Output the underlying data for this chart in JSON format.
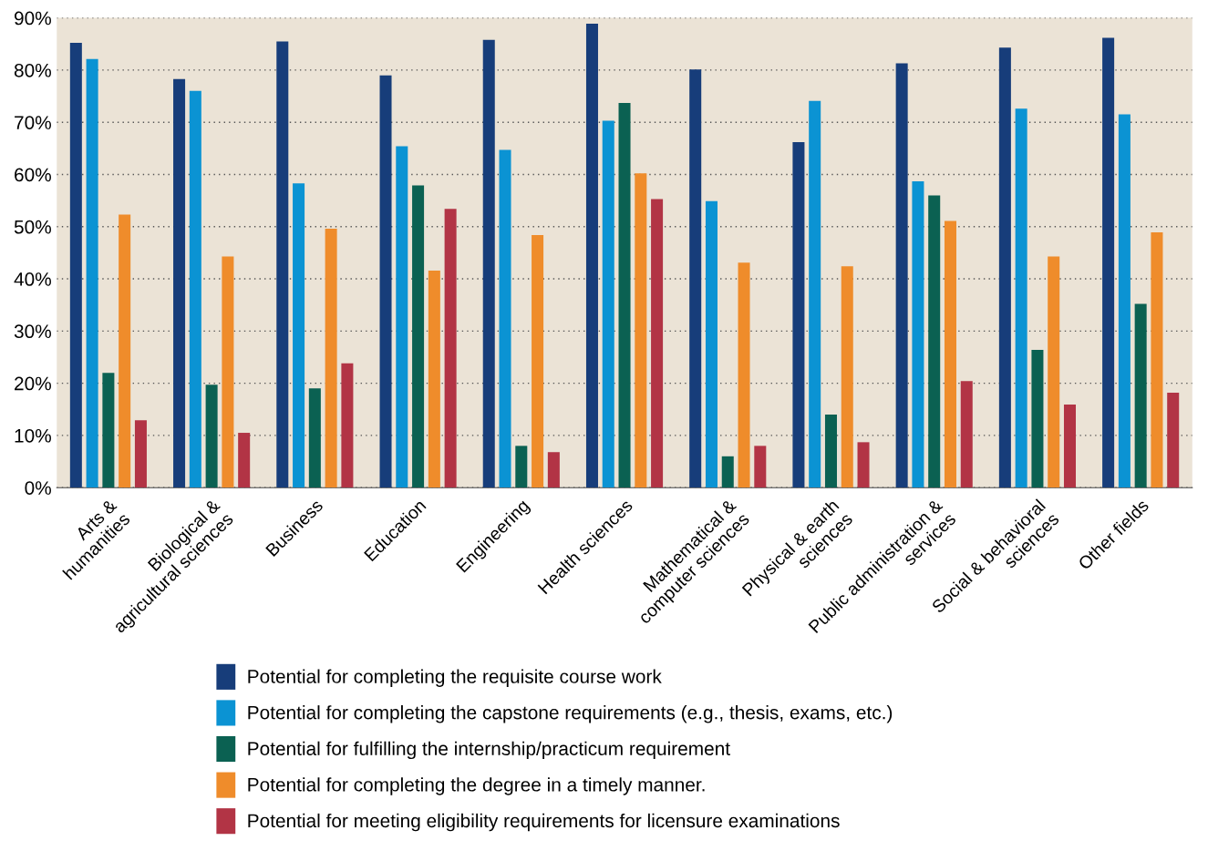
{
  "chart_data": {
    "type": "bar",
    "categories": [
      "Arts &\nhumanities",
      "Biological &\nagricultural sciences",
      "Business",
      "Education",
      "Engineering",
      "Health sciences",
      "Mathematical &\ncomputer sciences",
      "Physical & earth\nsciences",
      "Public administration &\nservices",
      "Social & behavioral\nsciences",
      "Other fields"
    ],
    "series": [
      {
        "name": "Potential for completing the requisite course work",
        "color": "#173d7a",
        "values": [
          85.2,
          78.3,
          85.5,
          79.0,
          85.8,
          88.9,
          80.1,
          66.2,
          81.3,
          84.3,
          86.2
        ]
      },
      {
        "name": "Potential for completing the capstone requirements (e.g., thesis, exams, etc.)",
        "color": "#0b93d3",
        "values": [
          82.1,
          76.0,
          58.3,
          65.4,
          64.7,
          70.3,
          54.9,
          74.1,
          58.7,
          72.6,
          71.5
        ]
      },
      {
        "name": "Potential for fulfilling the internship/practicum requirement",
        "color": "#0b6152",
        "values": [
          22.0,
          19.7,
          19.0,
          57.9,
          8.0,
          73.7,
          6.0,
          14.0,
          56.0,
          26.4,
          35.2
        ]
      },
      {
        "name": "Potential for completing the degree in a timely manner.",
        "color": "#ef8c2b",
        "values": [
          52.3,
          44.3,
          49.6,
          41.6,
          48.4,
          60.2,
          43.1,
          42.4,
          51.1,
          44.3,
          48.9
        ]
      },
      {
        "name": "Potential for meeting eligibility requirements for licensure examinations",
        "color": "#b23445",
        "values": [
          12.9,
          10.5,
          23.8,
          53.4,
          6.8,
          55.3,
          8.0,
          8.7,
          20.4,
          15.9,
          18.2
        ]
      }
    ],
    "ylim": [
      0,
      90
    ],
    "yticks": [
      {
        "value": 0,
        "label": "0%"
      },
      {
        "value": 10,
        "label": "10%"
      },
      {
        "value": 20,
        "label": "20%"
      },
      {
        "value": 30,
        "label": "30%"
      },
      {
        "value": 40,
        "label": "40%"
      },
      {
        "value": 50,
        "label": "50%"
      },
      {
        "value": 60,
        "label": "60%"
      },
      {
        "value": 70,
        "label": "70%"
      },
      {
        "value": 80,
        "label": "80%"
      },
      {
        "value": 90,
        "label": "90%"
      }
    ],
    "grid": "y",
    "legend": "bottom"
  }
}
